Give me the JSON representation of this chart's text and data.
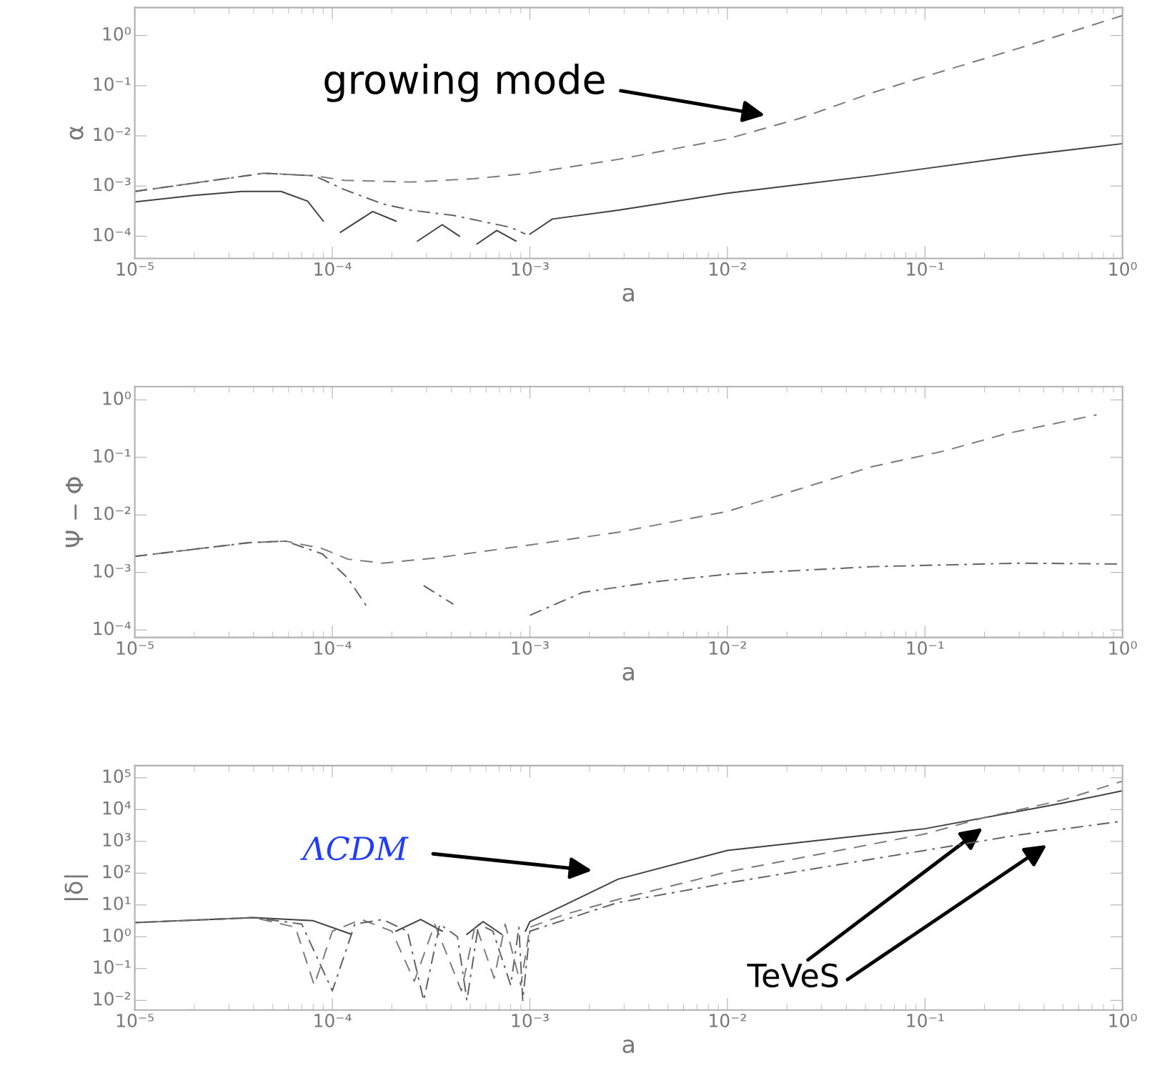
{
  "chart_data": [
    {
      "type": "line",
      "xlabel": "a",
      "ylabel": "α",
      "log": "xy",
      "grid": false,
      "legend": false,
      "xlim": [
        1e-05,
        1
      ],
      "ylim": [
        3.6e-05,
        3.6
      ],
      "xticks": [
        {
          "value": 1e-05,
          "label": "10⁻⁵"
        },
        {
          "value": 0.0001,
          "label": "10⁻⁴"
        },
        {
          "value": 0.001,
          "label": "10⁻³"
        },
        {
          "value": 0.01,
          "label": "10⁻²"
        },
        {
          "value": 0.1,
          "label": "10⁻¹"
        },
        {
          "value": 1,
          "label": "10⁰"
        }
      ],
      "yticks": [
        {
          "value": 0.0001,
          "label": "10⁻⁴"
        },
        {
          "value": 0.001,
          "label": "10⁻³"
        },
        {
          "value": 0.01,
          "label": "10⁻²"
        },
        {
          "value": 0.1,
          "label": "10⁻¹"
        },
        {
          "value": 1,
          "label": "10⁰"
        }
      ],
      "series": [
        {
          "color": "#7a7a7a",
          "line_style": "dashed",
          "x": [
            1e-05,
            4.5e-05,
            8.1e-05,
            0.000115,
            0.00025,
            0.00052,
            0.001,
            0.0028,
            0.01,
            0.023,
            0.054,
            0.126,
            0.3,
            1
          ],
          "values": [
            0.00078,
            0.0018,
            0.0016,
            0.0013,
            0.0012,
            0.0014,
            0.0018,
            0.0034,
            0.0087,
            0.022,
            0.072,
            0.2,
            0.56,
            2.5
          ]
        },
        {
          "color": "#606060",
          "line_style": "dashdot",
          "x": [
            1e-05,
            4.5e-05,
            8.1e-05,
            0.000115,
            0.00018,
            0.00025,
            0.00041,
            0.0008,
            0.00095
          ],
          "values": [
            0.00078,
            0.0018,
            0.0016,
            0.00085,
            0.00044,
            0.00033,
            0.00026,
            0.00015,
            0.00011
          ]
        },
        {
          "color": "#404040",
          "line_style": "solid",
          "x": [
            1e-05,
            2e-05,
            3.5e-05,
            5.5e-05,
            7.5e-05,
            9e-05,
            0.0001,
            0.00011,
            0.00016,
            0.00021,
            0.00025,
            0.00027,
            0.00036,
            0.00044,
            0.0005,
            0.00054,
            0.00068,
            0.00085,
            0.00094,
            0.001,
            0.0013,
            0.0028,
            0.01,
            0.054,
            0.3,
            1
          ],
          "values": [
            0.00048,
            0.00065,
            0.00078,
            0.00078,
            0.0005,
            0.0002,
            null,
            0.00012,
            0.00031,
            0.0002,
            null,
            8e-05,
            0.00017,
            0.0001,
            null,
            7e-05,
            0.00013,
            8e-05,
            null,
            0.00011,
            0.00022,
            0.00033,
            0.00072,
            0.0016,
            0.004,
            0.007
          ]
        }
      ],
      "annotations": [
        "growing mode"
      ]
    },
    {
      "type": "line",
      "xlabel": "a",
      "ylabel": "Ψ − Φ",
      "log": "xy",
      "grid": false,
      "legend": false,
      "xlim": [
        1e-05,
        1
      ],
      "ylim": [
        7.4e-05,
        1.7
      ],
      "xticks": [
        {
          "value": 1e-05,
          "label": "10⁻⁵"
        },
        {
          "value": 0.0001,
          "label": "10⁻⁴"
        },
        {
          "value": 0.001,
          "label": "10⁻³"
        },
        {
          "value": 0.01,
          "label": "10⁻²"
        },
        {
          "value": 0.1,
          "label": "10⁻¹"
        },
        {
          "value": 1,
          "label": "10⁰"
        }
      ],
      "yticks": [
        {
          "value": 0.0001,
          "label": "10⁻⁴"
        },
        {
          "value": 0.001,
          "label": "10⁻³"
        },
        {
          "value": 0.01,
          "label": "10⁻²"
        },
        {
          "value": 0.1,
          "label": "10⁻¹"
        },
        {
          "value": 1,
          "label": "10⁰"
        }
      ],
      "series": [
        {
          "color": "#7a7a7a",
          "line_style": "dashed",
          "x": [
            1e-05,
            3.8e-05,
            5.8e-05,
            8.9e-05,
            0.00012,
            0.00018,
            0.00034,
            0.001,
            0.0028,
            0.01,
            0.023,
            0.054,
            0.126,
            0.26,
            0.74
          ],
          "values": [
            0.0019,
            0.0033,
            0.0035,
            0.0026,
            0.0017,
            0.00145,
            0.0018,
            0.003,
            0.005,
            0.0115,
            0.028,
            0.069,
            0.13,
            0.26,
            0.55
          ]
        },
        {
          "color": "#606060",
          "line_style": "dashdot",
          "x": [
            1e-05,
            3.8e-05,
            5.8e-05,
            8.9e-05,
            0.00012,
            0.00015,
            0.00016,
            0.0002,
            0.00029,
            0.00041,
            0.00056,
            0.00079,
            0.001,
            0.00185,
            0.0043,
            0.01,
            0.054,
            0.3,
            1
          ],
          "values": [
            0.0019,
            0.0033,
            0.0035,
            0.0021,
            0.00079,
            0.00025,
            null,
            null,
            0.00059,
            0.00028,
            null,
            null,
            0.00018,
            0.00045,
            0.00069,
            0.00093,
            0.00126,
            0.00145,
            0.0014
          ]
        }
      ]
    },
    {
      "type": "line",
      "xlabel": "a",
      "ylabel": "|δ|",
      "log": "xy",
      "grid": false,
      "legend": false,
      "xlim": [
        1e-05,
        1
      ],
      "ylim": [
        0.005,
        240000.0
      ],
      "xticks": [
        {
          "value": 1e-05,
          "label": "10⁻⁵"
        },
        {
          "value": 0.0001,
          "label": "10⁻⁴"
        },
        {
          "value": 0.001,
          "label": "10⁻³"
        },
        {
          "value": 0.01,
          "label": "10⁻²"
        },
        {
          "value": 0.1,
          "label": "10⁻¹"
        },
        {
          "value": 1,
          "label": "10⁰"
        }
      ],
      "yticks": [
        {
          "value": 0.01,
          "label": "10⁻²"
        },
        {
          "value": 0.1,
          "label": "10⁻¹"
        },
        {
          "value": 1,
          "label": "10⁰"
        },
        {
          "value": 10,
          "label": "10¹"
        },
        {
          "value": 100,
          "label": "10²"
        },
        {
          "value": 1000,
          "label": "10³"
        },
        {
          "value": 10000.0,
          "label": "10⁴"
        },
        {
          "value": 100000.0,
          "label": "10⁵"
        }
      ],
      "series": [
        {
          "color": "#404040",
          "line_style": "solid",
          "x": [
            1e-05,
            4e-05,
            8e-05,
            0.000125,
            0.00016,
            0.00021,
            0.00028,
            0.00036,
            0.00042,
            0.00048,
            0.00058,
            0.00072,
            0.00088,
            0.00095,
            0.001,
            0.0015,
            0.0028,
            0.01,
            0.1,
            0.5,
            1
          ],
          "values": [
            2.8,
            4,
            3.2,
            1.2,
            null,
            1.5,
            3.5,
            1.5,
            null,
            1.2,
            3,
            1.2,
            null,
            1.5,
            3,
            10,
            65,
            520,
            2500,
            16000,
            39000
          ]
        },
        {
          "color": "#7a7a7a",
          "line_style": "dashed",
          "x": [
            1e-05,
            4e-05,
            6.5e-05,
            8.1e-05,
            0.0001,
            0.00014,
            0.0002,
            0.00026,
            0.00033,
            0.00045,
            0.00053,
            0.00066,
            0.00075,
            0.0009,
            0.001,
            0.0015,
            0.0028,
            0.01,
            0.1,
            0.2,
            0.5,
            1
          ],
          "values": [
            2.8,
            4,
            2,
            0.03,
            1.5,
            3.5,
            1.5,
            0.04,
            2.5,
            0.02,
            2.5,
            0.05,
            2.5,
            0.03,
            2,
            5,
            15,
            110,
            1700,
            5600,
            20000,
            78000
          ]
        },
        {
          "color": "#606060",
          "line_style": "dashdot",
          "x": [
            1e-05,
            4e-05,
            7e-05,
            0.0001,
            0.00013,
            0.00018,
            0.00024,
            0.00029,
            0.00035,
            0.00043,
            0.00048,
            0.00055,
            0.00065,
            0.0008,
            0.00088,
            0.00092,
            0.001,
            0.0028,
            0.01,
            0.1,
            0.3,
            1
          ],
          "values": [
            2.8,
            4,
            2.5,
            0.02,
            2.5,
            3.5,
            1.5,
            0.01,
            2.5,
            1,
            0.01,
            2.5,
            1.5,
            0.03,
            2,
            0.01,
            1.5,
            12,
            49,
            520,
            1600,
            4300
          ]
        }
      ],
      "annotations": [
        "ΛCDM",
        "TeVeS"
      ]
    }
  ]
}
